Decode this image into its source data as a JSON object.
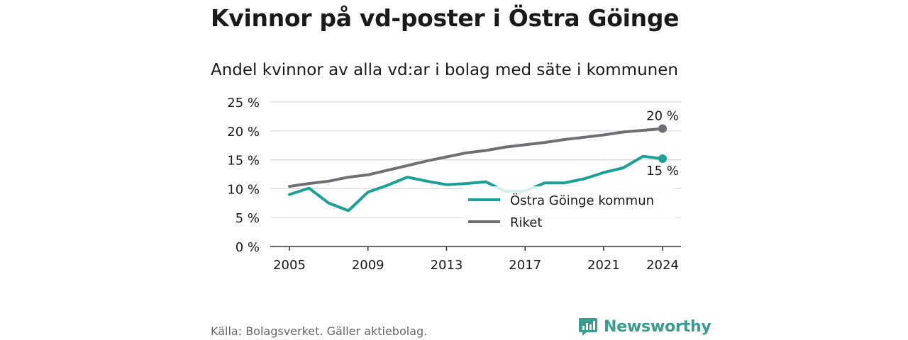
{
  "header": {
    "title": "Kvinnor på vd-poster i Östra Göinge",
    "subtitle": "Andel kvinnor av alla vd:ar i bolag med säte i kommunen"
  },
  "footer": {
    "source": "Källa: Bolagsverket. Gäller aktiebolag.",
    "brand": "Newsworthy",
    "brand_color": "#3a9c91"
  },
  "chart_data": {
    "type": "line",
    "x": [
      2005,
      2006,
      2007,
      2008,
      2009,
      2010,
      2011,
      2012,
      2013,
      2014,
      2015,
      2016,
      2017,
      2018,
      2019,
      2020,
      2021,
      2022,
      2023,
      2024
    ],
    "ylim": [
      0,
      25
    ],
    "xlim": [
      2005,
      2024
    ],
    "y_ticks": [
      0,
      5,
      10,
      15,
      20,
      25
    ],
    "y_tick_labels": [
      "0 %",
      "5 %",
      "10 %",
      "15 %",
      "20 %",
      "25 %"
    ],
    "x_ticks": [
      2005,
      2009,
      2013,
      2017,
      2021,
      2024
    ],
    "x_tick_labels": [
      "2005",
      "2009",
      "2013",
      "2017",
      "2021",
      "2024"
    ],
    "grid": "horizontal",
    "legend_position": "bottom-right",
    "series": [
      {
        "name": "Östra Göinge kommun",
        "color": "#1aa096",
        "values": [
          9.0,
          10.1,
          7.5,
          6.2,
          9.4,
          10.6,
          12.0,
          11.3,
          10.7,
          10.9,
          11.2,
          9.5,
          9.6,
          11.0,
          11.0,
          11.7,
          12.8,
          13.6,
          15.6,
          15.2
        ],
        "end_label": "15 %"
      },
      {
        "name": "Riket",
        "color": "#6e6e73",
        "values": [
          10.4,
          10.9,
          11.3,
          12.0,
          12.4,
          13.2,
          14.0,
          14.8,
          15.5,
          16.2,
          16.6,
          17.2,
          17.6,
          18.0,
          18.5,
          18.9,
          19.3,
          19.8,
          20.1,
          20.4
        ],
        "end_label": "20 %"
      }
    ]
  }
}
